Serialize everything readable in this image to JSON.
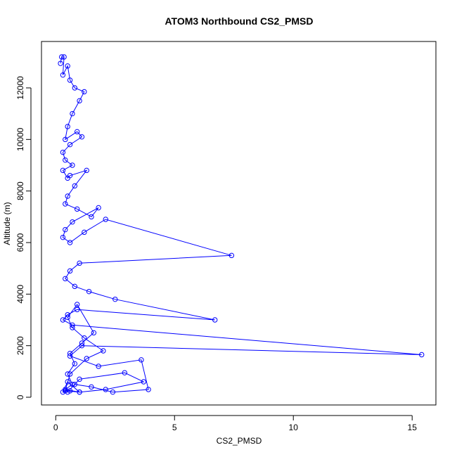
{
  "chart_data": {
    "type": "line",
    "title": "ATOM3 Northbound CS2_PMSD",
    "xlabel": "CS2_PMSD",
    "ylabel": "Altitude (m)",
    "xlim": [
      -0.6,
      16.0
    ],
    "ylim": [
      -300,
      13800
    ],
    "x_ticks": [
      0,
      5,
      10,
      15
    ],
    "x_tick_labels": [
      "0",
      "5",
      "10",
      "15"
    ],
    "y_ticks": [
      0,
      2000,
      4000,
      6000,
      8000,
      10000,
      12000
    ],
    "y_tick_labels": [
      "0",
      "2000",
      "4000",
      "6000",
      "8000",
      "10000",
      "12000"
    ],
    "grid": false,
    "legend": "none",
    "series_color": "#0000ff",
    "marker": "open-circle",
    "series": [
      {
        "x": [
          0.2,
          0.25,
          0.35,
          0.3,
          0.5,
          0.6,
          0.8,
          1.2,
          1.0,
          0.7,
          0.5,
          0.4,
          0.9,
          1.1,
          0.6,
          0.3,
          0.4,
          0.7,
          0.3,
          0.5,
          0.6,
          1.3,
          0.8,
          0.5,
          0.4,
          0.9,
          1.5,
          1.8,
          0.7,
          0.4,
          0.3,
          0.6,
          1.2,
          2.1,
          7.4,
          1.0,
          0.6,
          0.4,
          0.8,
          1.4,
          2.5,
          6.7,
          0.9,
          0.5,
          0.3,
          0.7,
          15.4,
          1.1,
          0.6,
          1.8,
          3.6,
          3.9,
          2.4,
          1.5,
          0.8,
          0.5,
          1.0,
          2.9,
          3.7,
          2.1,
          1.0,
          0.4,
          0.6,
          1.3,
          2.0,
          1.2,
          0.7,
          0.5,
          0.9,
          1.6,
          1.1,
          0.6,
          0.8,
          0.5,
          0.7,
          0.4,
          1.0,
          0.5,
          0.3,
          0.6
        ],
        "y": [
          12950,
          13200,
          13200,
          12500,
          12850,
          12300,
          12000,
          11850,
          11500,
          11000,
          10500,
          10000,
          10300,
          10100,
          9800,
          9500,
          9200,
          9000,
          8800,
          8500,
          8600,
          8800,
          8200,
          7800,
          7500,
          7300,
          7000,
          7350,
          6800,
          6500,
          6200,
          6000,
          6400,
          6900,
          5500,
          5200,
          4900,
          4600,
          4300,
          4100,
          3800,
          3000,
          3400,
          3200,
          3000,
          2800,
          1650,
          2000,
          1600,
          1200,
          1450,
          300,
          200,
          400,
          500,
          200,
          700,
          950,
          600,
          300,
          200,
          250,
          900,
          1500,
          1800,
          2300,
          2700,
          3100,
          3600,
          2500,
          2100,
          1700,
          1300,
          900,
          500,
          300,
          200,
          600,
          200,
          250
        ]
      }
    ]
  }
}
